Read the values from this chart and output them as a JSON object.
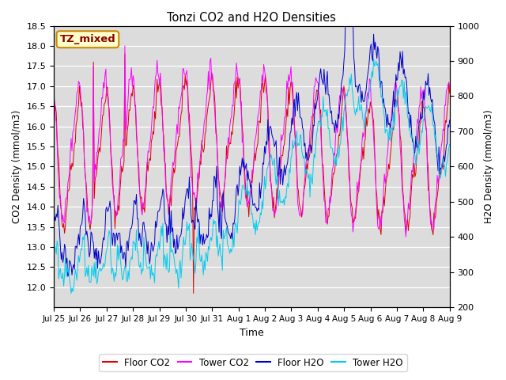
{
  "title": "Tonzi CO2 and H2O Densities",
  "xlabel": "Time",
  "ylabel_left": "CO2 Density (mmol/m3)",
  "ylabel_right": "H2O Density (mmol/m3)",
  "ylim_left": [
    11.5,
    18.5
  ],
  "ylim_right": [
    200,
    1000
  ],
  "yticks_left": [
    12.0,
    12.5,
    13.0,
    13.5,
    14.0,
    14.5,
    15.0,
    15.5,
    16.0,
    16.5,
    17.0,
    17.5,
    18.0,
    18.5
  ],
  "yticks_right": [
    200,
    300,
    400,
    500,
    600,
    700,
    800,
    900,
    1000
  ],
  "annotation_text": "TZ_mixed",
  "annotation_bbox": {
    "boxstyle": "round,pad=0.3",
    "facecolor": "#ffffcc",
    "edgecolor": "#cc8800"
  },
  "annotation_color": "#8b0000",
  "background_color": "#dcdcdc",
  "line_colors": {
    "floor_co2": "#dd0000",
    "tower_co2": "#ff00ff",
    "floor_h2o": "#0000cc",
    "tower_h2o": "#00ccee"
  },
  "legend_labels": [
    "Floor CO2",
    "Tower CO2",
    "Floor H2O",
    "Tower H2O"
  ],
  "xtick_labels": [
    "Jul 25",
    "Jul 26",
    "Jul 27",
    "Jul 28",
    "Jul 29",
    "Jul 30",
    "Jul 31",
    "Aug 1",
    "Aug 2",
    "Aug 3",
    "Aug 4",
    "Aug 5",
    "Aug 6",
    "Aug 7",
    "Aug 8",
    "Aug 9"
  ],
  "n_points": 480,
  "seed": 42
}
